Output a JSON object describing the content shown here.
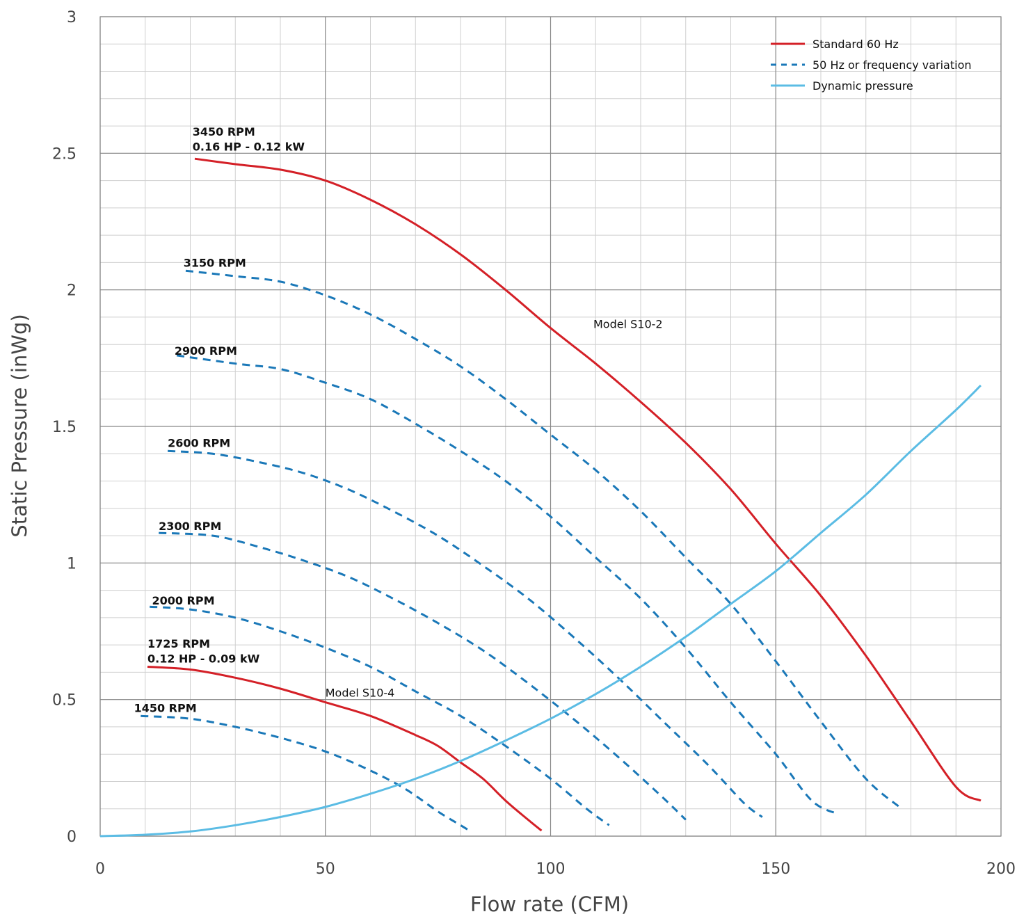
{
  "chart_data": {
    "type": "line",
    "xlabel": "Flow rate (CFM)",
    "ylabel": "Static Pressure (inWg)",
    "xlim": [
      0,
      200
    ],
    "ylim": [
      0,
      3
    ],
    "x_ticks": [
      "0",
      "50",
      "100",
      "150",
      "200"
    ],
    "y_ticks": [
      "0",
      "0.5",
      "1",
      "1.5",
      "2",
      "2.5",
      "3"
    ],
    "x_tick_values": [
      0,
      50,
      100,
      150,
      200
    ],
    "y_tick_values": [
      0,
      0.5,
      1,
      1.5,
      2,
      2.5,
      3
    ],
    "grid": true,
    "legend_position": "top-right",
    "colors": {
      "standard": "#d42027",
      "variation": "#1a78b8",
      "dynamic": "#5bbce4",
      "grid_major": "#888888",
      "grid_minor": "#cfcfcf"
    },
    "legend": [
      {
        "label": "Standard 60 Hz",
        "style": "standard"
      },
      {
        "label": "50 Hz or frequency variation",
        "style": "variation"
      },
      {
        "label": "Dynamic pressure",
        "style": "dynamic"
      }
    ],
    "series": [
      {
        "style": "standard",
        "points": [
          [
            21,
            2.48
          ],
          [
            30,
            2.46
          ],
          [
            40,
            2.44
          ],
          [
            50,
            2.4
          ],
          [
            60,
            2.33
          ],
          [
            70,
            2.24
          ],
          [
            80,
            2.13
          ],
          [
            90,
            2.0
          ],
          [
            100,
            1.86
          ],
          [
            110,
            1.73
          ],
          [
            120,
            1.59
          ],
          [
            130,
            1.44
          ],
          [
            140,
            1.27
          ],
          [
            150,
            1.07
          ],
          [
            160,
            0.88
          ],
          [
            170,
            0.66
          ],
          [
            180,
            0.42
          ],
          [
            190,
            0.18
          ],
          [
            195.5,
            0.13
          ]
        ]
      },
      {
        "style": "variation",
        "points": [
          [
            19,
            2.07
          ],
          [
            30,
            2.05
          ],
          [
            40,
            2.03
          ],
          [
            50,
            1.98
          ],
          [
            60,
            1.91
          ],
          [
            70,
            1.82
          ],
          [
            80,
            1.72
          ],
          [
            90,
            1.6
          ],
          [
            100,
            1.47
          ],
          [
            110,
            1.34
          ],
          [
            120,
            1.19
          ],
          [
            130,
            1.02
          ],
          [
            140,
            0.85
          ],
          [
            150,
            0.64
          ],
          [
            160,
            0.42
          ],
          [
            170,
            0.21
          ],
          [
            178,
            0.1
          ]
        ]
      },
      {
        "style": "variation",
        "points": [
          [
            17,
            1.76
          ],
          [
            30,
            1.73
          ],
          [
            40,
            1.71
          ],
          [
            50,
            1.66
          ],
          [
            60,
            1.6
          ],
          [
            70,
            1.51
          ],
          [
            80,
            1.41
          ],
          [
            90,
            1.3
          ],
          [
            100,
            1.17
          ],
          [
            110,
            1.02
          ],
          [
            120,
            0.87
          ],
          [
            130,
            0.69
          ],
          [
            140,
            0.49
          ],
          [
            150,
            0.3
          ],
          [
            158,
            0.13
          ],
          [
            164,
            0.08
          ]
        ]
      },
      {
        "style": "variation",
        "points": [
          [
            15,
            1.41
          ],
          [
            25,
            1.4
          ],
          [
            35,
            1.37
          ],
          [
            45,
            1.33
          ],
          [
            55,
            1.27
          ],
          [
            65,
            1.19
          ],
          [
            75,
            1.1
          ],
          [
            85,
            0.99
          ],
          [
            95,
            0.87
          ],
          [
            105,
            0.73
          ],
          [
            115,
            0.58
          ],
          [
            125,
            0.42
          ],
          [
            135,
            0.26
          ],
          [
            143,
            0.12
          ],
          [
            147,
            0.07
          ]
        ]
      },
      {
        "style": "variation",
        "points": [
          [
            13,
            1.11
          ],
          [
            25,
            1.1
          ],
          [
            35,
            1.06
          ],
          [
            45,
            1.01
          ],
          [
            55,
            0.95
          ],
          [
            65,
            0.87
          ],
          [
            75,
            0.78
          ],
          [
            85,
            0.68
          ],
          [
            95,
            0.56
          ],
          [
            105,
            0.43
          ],
          [
            115,
            0.29
          ],
          [
            125,
            0.14
          ],
          [
            130,
            0.06
          ]
        ]
      },
      {
        "style": "variation",
        "points": [
          [
            11,
            0.84
          ],
          [
            20,
            0.83
          ],
          [
            30,
            0.8
          ],
          [
            40,
            0.75
          ],
          [
            50,
            0.69
          ],
          [
            60,
            0.62
          ],
          [
            70,
            0.53
          ],
          [
            80,
            0.44
          ],
          [
            90,
            0.33
          ],
          [
            100,
            0.21
          ],
          [
            108,
            0.1
          ],
          [
            113,
            0.04
          ]
        ]
      },
      {
        "style": "standard",
        "points": [
          [
            10.5,
            0.62
          ],
          [
            20,
            0.61
          ],
          [
            30,
            0.58
          ],
          [
            40,
            0.54
          ],
          [
            50,
            0.49
          ],
          [
            60,
            0.44
          ],
          [
            70,
            0.37
          ],
          [
            75,
            0.33
          ],
          [
            80,
            0.27
          ],
          [
            85,
            0.21
          ],
          [
            90,
            0.13
          ],
          [
            95,
            0.06
          ],
          [
            98,
            0.02
          ]
        ]
      },
      {
        "style": "variation",
        "points": [
          [
            9,
            0.44
          ],
          [
            20,
            0.43
          ],
          [
            30,
            0.4
          ],
          [
            40,
            0.36
          ],
          [
            50,
            0.31
          ],
          [
            60,
            0.24
          ],
          [
            68,
            0.17
          ],
          [
            75,
            0.09
          ],
          [
            80,
            0.04
          ],
          [
            82,
            0.02
          ]
        ]
      },
      {
        "style": "dynamic",
        "points": [
          [
            0,
            0
          ],
          [
            10,
            0.005
          ],
          [
            20,
            0.017
          ],
          [
            30,
            0.04
          ],
          [
            40,
            0.07
          ],
          [
            50,
            0.107
          ],
          [
            60,
            0.155
          ],
          [
            70,
            0.21
          ],
          [
            80,
            0.275
          ],
          [
            90,
            0.35
          ],
          [
            100,
            0.43
          ],
          [
            110,
            0.52
          ],
          [
            120,
            0.62
          ],
          [
            130,
            0.73
          ],
          [
            140,
            0.85
          ],
          [
            150,
            0.97
          ],
          [
            160,
            1.11
          ],
          [
            170,
            1.25
          ],
          [
            180,
            1.41
          ],
          [
            190,
            1.56
          ],
          [
            195.5,
            1.65
          ]
        ]
      }
    ],
    "annotations": [
      {
        "text": "3450 RPM",
        "x": 20.5,
        "y": 2.565,
        "bold": true
      },
      {
        "text": "0.16 HP - 0.12 kW",
        "x": 20.5,
        "y": 2.51,
        "bold": true
      },
      {
        "text": "3150 RPM",
        "x": 18.5,
        "y": 2.085,
        "bold": true
      },
      {
        "text": "2900 RPM",
        "x": 16.5,
        "y": 1.762,
        "bold": true
      },
      {
        "text": "2600 RPM",
        "x": 15,
        "y": 1.425,
        "bold": true
      },
      {
        "text": "2300 RPM",
        "x": 13,
        "y": 1.12,
        "bold": true
      },
      {
        "text": "2000 RPM",
        "x": 11.5,
        "y": 0.848,
        "bold": true
      },
      {
        "text": "1725 RPM",
        "x": 10.5,
        "y": 0.69,
        "bold": true
      },
      {
        "text": "0.12 HP - 0.09 kW",
        "x": 10.5,
        "y": 0.635,
        "bold": true
      },
      {
        "text": "1450 RPM",
        "x": 7.5,
        "y": 0.455,
        "bold": true
      },
      {
        "text": "Model S10-2",
        "x": 109.5,
        "y": 1.86,
        "bold": false
      },
      {
        "text": "Model S10-4",
        "x": 50,
        "y": 0.51,
        "bold": false
      }
    ]
  }
}
